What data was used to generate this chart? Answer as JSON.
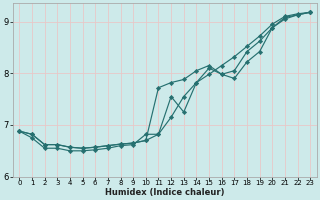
{
  "xlabel": "Humidex (Indice chaleur)",
  "xlim": [
    -0.5,
    23.5
  ],
  "ylim": [
    6.0,
    9.35
  ],
  "yticks": [
    6,
    7,
    8,
    9
  ],
  "xticks": [
    0,
    1,
    2,
    3,
    4,
    5,
    6,
    7,
    8,
    9,
    10,
    11,
    12,
    13,
    14,
    15,
    16,
    17,
    18,
    19,
    20,
    21,
    22,
    23
  ],
  "background_color": "#cdeaea",
  "grid_color": "#b8d8d8",
  "line_color": "#267070",
  "lines": [
    {
      "x": [
        0,
        1,
        2,
        3,
        4,
        5,
        6,
        7,
        8,
        9,
        10,
        11,
        12,
        13,
        14,
        15,
        16,
        17,
        18,
        19,
        20,
        21,
        22,
        23
      ],
      "y": [
        6.88,
        6.82,
        6.62,
        6.62,
        6.57,
        6.55,
        6.57,
        6.6,
        6.63,
        6.65,
        6.7,
        6.82,
        7.15,
        7.55,
        7.82,
        7.98,
        8.15,
        8.32,
        8.52,
        8.72,
        8.95,
        9.1,
        9.15,
        9.18
      ]
    },
    {
      "x": [
        0,
        1,
        2,
        3,
        4,
        5,
        6,
        7,
        8,
        9,
        10,
        11,
        12,
        13,
        14,
        15,
        16,
        17,
        18,
        19,
        20,
        21,
        22,
        23
      ],
      "y": [
        6.88,
        6.82,
        6.62,
        6.62,
        6.57,
        6.55,
        6.57,
        6.6,
        6.63,
        6.65,
        6.7,
        7.72,
        7.82,
        7.88,
        8.05,
        8.15,
        7.98,
        8.05,
        8.42,
        8.62,
        8.88,
        9.08,
        9.13,
        9.18
      ]
    },
    {
      "x": [
        0,
        1,
        2,
        3,
        4,
        5,
        6,
        7,
        8,
        9,
        10,
        11,
        12,
        13,
        14,
        15,
        16,
        17,
        18,
        19,
        20,
        21,
        22,
        23
      ],
      "y": [
        6.88,
        6.75,
        6.55,
        6.55,
        6.5,
        6.5,
        6.52,
        6.55,
        6.6,
        6.62,
        6.82,
        6.82,
        7.55,
        7.25,
        7.82,
        8.1,
        7.98,
        7.9,
        8.22,
        8.42,
        8.88,
        9.05,
        9.13,
        9.18
      ]
    }
  ]
}
